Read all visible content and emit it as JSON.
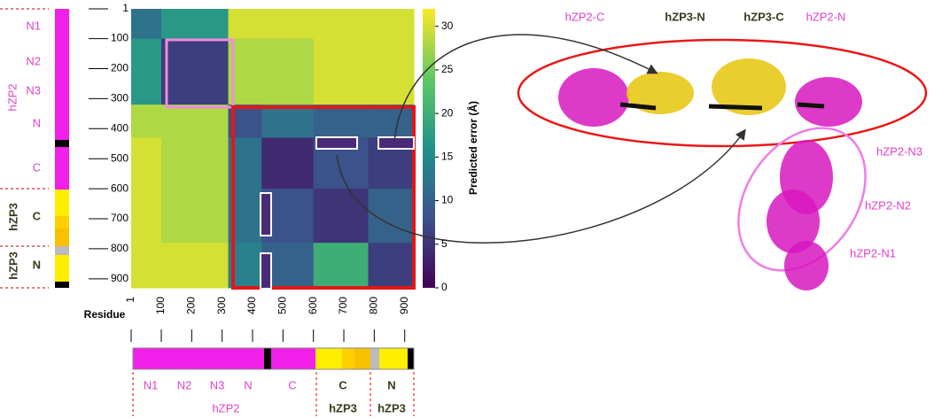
{
  "chart_data": {
    "type": "heatmap",
    "xlabel": "Residue",
    "colorbar_label": "Predicted error (Å)",
    "bins": [
      1,
      100,
      320,
      430,
      600,
      780,
      930
    ],
    "values": [
      [
        12,
        17,
        30,
        30,
        30,
        30
      ],
      [
        17,
        6,
        28,
        28,
        30,
        30
      ],
      [
        28,
        28,
        8,
        12,
        10,
        10
      ],
      [
        30,
        28,
        12,
        4,
        8,
        6
      ],
      [
        30,
        28,
        12,
        8,
        5,
        10
      ],
      [
        30,
        30,
        14,
        10,
        20,
        6
      ]
    ],
    "xlim": [
      1,
      930
    ],
    "ylim": [
      1,
      930
    ],
    "xticks": [
      1,
      100,
      200,
      300,
      400,
      500,
      600,
      700,
      800,
      900
    ],
    "yticks": [
      1,
      100,
      200,
      300,
      400,
      500,
      600,
      700,
      800,
      900
    ],
    "clim": [
      0,
      32
    ],
    "cticks": [
      0,
      5,
      10,
      15,
      20,
      25,
      30
    ],
    "colormap": [
      "#440154",
      "#3b528b",
      "#21918c",
      "#5ec962",
      "#fde725"
    ],
    "side_labels": {
      "zp2_domains": [
        "N1",
        "N2",
        "N3",
        "N",
        "C"
      ],
      "zp2": "hZP2",
      "zp3_c": "C",
      "zp3_c_name": "hZP3",
      "zp3_n": "N",
      "zp3_n_name": "hZP3"
    },
    "bottom_labels": {
      "zp2_domains": [
        "N1",
        "N2",
        "N3",
        "N",
        "C"
      ],
      "zp2": "hZP2",
      "zp3_c": "C",
      "zp3_c_name": "hZP3",
      "zp3_n": "N",
      "zp3_n_name": "hZP3"
    },
    "structure_labels": {
      "zp2_c": "hZP2-C",
      "zp3_n": "hZP3-N",
      "zp3_c": "hZP3-C",
      "zp2_n": "hZP2-N",
      "zp2_n3": "hZP2-N3",
      "zp2_n2": "hZP2-N2",
      "zp2_n1": "hZP2-N1"
    }
  }
}
